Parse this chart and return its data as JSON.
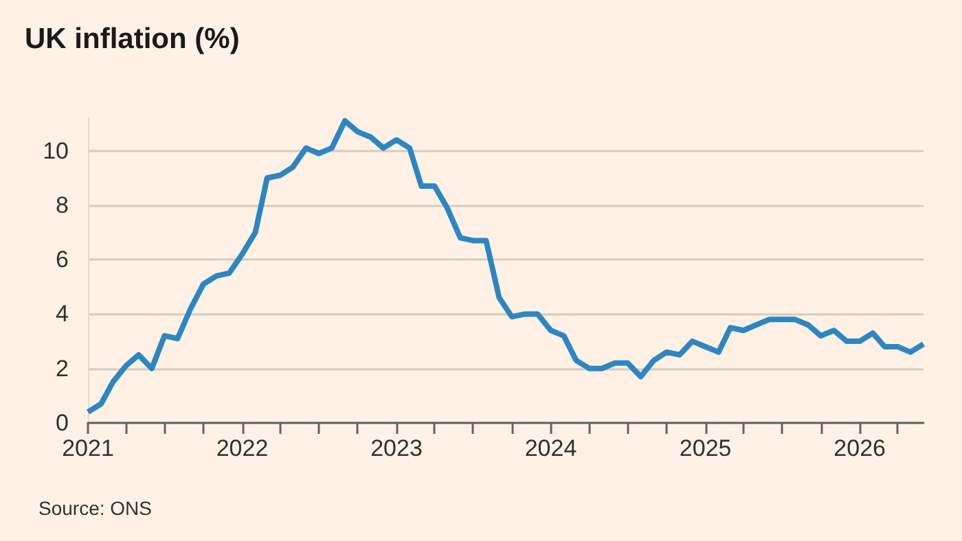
{
  "chart_data": {
    "type": "line",
    "title": "UK inflation (%)",
    "annotations": [
      "Source: ONS"
    ],
    "x": [
      "2021-01",
      "2021-02",
      "2021-03",
      "2021-04",
      "2021-05",
      "2021-06",
      "2021-07",
      "2021-08",
      "2021-09",
      "2021-10",
      "2021-11",
      "2021-12",
      "2022-01",
      "2022-02",
      "2022-03",
      "2022-04",
      "2022-05",
      "2022-06",
      "2022-07",
      "2022-08",
      "2022-09",
      "2022-10",
      "2022-11",
      "2022-12",
      "2023-01",
      "2023-02",
      "2023-03",
      "2023-04",
      "2023-05",
      "2023-06",
      "2023-07",
      "2023-08",
      "2023-09",
      "2023-10",
      "2023-11",
      "2023-12",
      "2024-01",
      "2024-02",
      "2024-03",
      "2024-04",
      "2024-05",
      "2024-06",
      "2024-07",
      "2024-08",
      "2024-09",
      "2024-10",
      "2024-11",
      "2024-12",
      "2025-01",
      "2025-02",
      "2025-03",
      "2025-04",
      "2025-05",
      "2025-06",
      "2025-07",
      "2025-08",
      "2025-09",
      "2025-10",
      "2025-11",
      "2025-12",
      "2026-01",
      "2026-02",
      "2026-03",
      "2026-04",
      "2026-05",
      "2026-06"
    ],
    "series": [
      {
        "color": "#2e86c1",
        "values": [
          0.4,
          0.7,
          1.5,
          2.1,
          2.5,
          2.0,
          3.2,
          3.1,
          4.2,
          5.1,
          5.4,
          5.5,
          6.2,
          7.0,
          9.0,
          9.1,
          9.4,
          10.1,
          9.9,
          10.1,
          11.1,
          10.7,
          10.5,
          10.1,
          10.4,
          10.1,
          8.7,
          8.7,
          7.9,
          6.8,
          6.7,
          6.7,
          4.6,
          3.9,
          4.0,
          4.0,
          3.4,
          3.2,
          2.3,
          2.0,
          2.0,
          2.2,
          2.2,
          1.7,
          2.3,
          2.6,
          2.5,
          3.0,
          2.8,
          2.6,
          3.5,
          3.4,
          3.6,
          3.8,
          3.8,
          3.8,
          3.6,
          3.2,
          3.4,
          3.0,
          3.0,
          3.3,
          2.8,
          2.8,
          2.6,
          2.9
        ]
      }
    ],
    "xlim": [
      "2021-01",
      "2026-06"
    ],
    "xticks": [
      {
        "value": "2021-01",
        "label": "2021"
      },
      {
        "value": "2021-04",
        "label": null
      },
      {
        "value": "2021-07",
        "label": null
      },
      {
        "value": "2021-10",
        "label": null
      },
      {
        "value": "2022-01",
        "label": "2022"
      },
      {
        "value": "2022-04",
        "label": null
      },
      {
        "value": "2022-07",
        "label": null
      },
      {
        "value": "2022-10",
        "label": null
      },
      {
        "value": "2023-01",
        "label": "2023"
      },
      {
        "value": "2023-04",
        "label": null
      },
      {
        "value": "2023-07",
        "label": null
      },
      {
        "value": "2023-10",
        "label": null
      },
      {
        "value": "2024-01",
        "label": "2024"
      },
      {
        "value": "2024-04",
        "label": null
      },
      {
        "value": "2024-07",
        "label": null
      },
      {
        "value": "2024-10",
        "label": null
      },
      {
        "value": "2025-01",
        "label": "2025"
      },
      {
        "value": "2025-04",
        "label": null
      },
      {
        "value": "2025-07",
        "label": null
      },
      {
        "value": "2025-10",
        "label": null
      },
      {
        "value": "2026-01",
        "label": "2026"
      },
      {
        "value": "2026-04",
        "label": null
      }
    ],
    "ylim": [
      0,
      11.2
    ],
    "yticks": [
      0,
      2,
      4,
      6,
      8,
      10
    ],
    "grid": "y",
    "marker": "none",
    "line_style": "solid"
  }
}
